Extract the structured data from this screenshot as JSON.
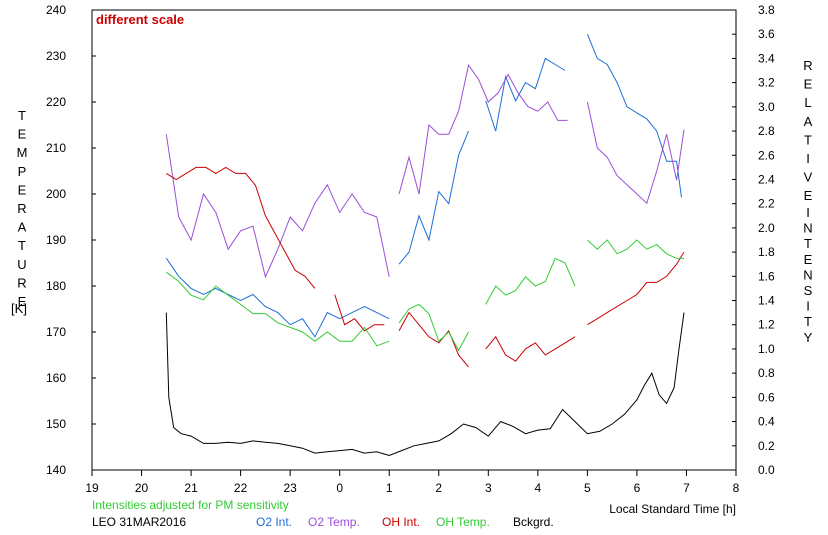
{
  "chart_data": {
    "type": "line",
    "annotation": "different scale",
    "left_axis": {
      "label_letters": [
        "T",
        "E",
        "M",
        "P",
        "E",
        "R",
        "A",
        "T",
        "U",
        "R",
        "E"
      ],
      "unit": "[K]",
      "range": [
        140,
        240
      ],
      "ticks": [
        140,
        150,
        160,
        170,
        180,
        190,
        200,
        210,
        220,
        230,
        240
      ]
    },
    "right_axis": {
      "label_word1": [
        "R",
        "E",
        "L",
        "A",
        "T",
        "I",
        "V",
        "E"
      ],
      "label_word2": [
        "I",
        "N",
        "T",
        "E",
        "N",
        "S",
        "I",
        "T",
        "Y"
      ],
      "range": [
        0,
        3.8
      ],
      "ticks": [
        "0.0",
        "0.2",
        "0.4",
        "0.6",
        "0.8",
        "1.0",
        "1.2",
        "1.4",
        "1.6",
        "1.8",
        "2.0",
        "2.2",
        "2.4",
        "2.6",
        "2.8",
        "3.0",
        "3.2",
        "3.4",
        "3.6",
        "3.8"
      ]
    },
    "x_axis": {
      "label": "Local Standard Time [h]",
      "ticks": [
        "19",
        "20",
        "21",
        "22",
        "23",
        "0",
        "1",
        "2",
        "3",
        "4",
        "5",
        "6",
        "7",
        "8"
      ]
    },
    "note": "Intensities adjusted for PM sensitivity",
    "station": "LEO 31MAR2016",
    "legend": [
      "O2 Int.",
      "O2 Temp.",
      "OH Int.",
      "OH Temp.",
      "Bckgrd."
    ],
    "series": [
      {
        "name": "O2 Int.",
        "axis": "right",
        "color": "#1e6fd6",
        "points": [
          [
            20.5,
            1.75
          ],
          [
            20.75,
            1.6
          ],
          [
            21.0,
            1.5
          ],
          [
            21.25,
            1.45
          ],
          [
            21.5,
            1.5
          ],
          [
            21.75,
            1.45
          ],
          [
            22.0,
            1.4
          ],
          [
            22.25,
            1.45
          ],
          [
            22.5,
            1.35
          ],
          [
            22.75,
            1.3
          ],
          [
            23.0,
            1.2
          ],
          [
            23.25,
            1.25
          ],
          [
            23.5,
            1.1
          ],
          [
            23.75,
            1.3
          ],
          [
            24.0,
            1.25
          ],
          [
            24.25,
            1.3
          ],
          [
            24.5,
            1.35
          ],
          [
            24.75,
            1.3
          ],
          [
            25.0,
            1.25
          ],
          null,
          [
            25.2,
            1.7
          ],
          [
            25.4,
            1.8
          ],
          [
            25.6,
            2.1
          ],
          [
            25.8,
            1.9
          ],
          [
            26.0,
            2.3
          ],
          [
            26.2,
            2.2
          ],
          [
            26.4,
            2.6
          ],
          [
            26.6,
            2.8
          ],
          null,
          [
            26.95,
            3.05
          ],
          [
            27.15,
            2.8
          ],
          [
            27.35,
            3.25
          ],
          [
            27.55,
            3.05
          ],
          [
            27.75,
            3.2
          ],
          [
            27.95,
            3.15
          ],
          [
            28.15,
            3.4
          ],
          [
            28.35,
            3.35
          ],
          [
            28.55,
            3.3
          ],
          null,
          [
            29.0,
            3.6
          ],
          [
            29.2,
            3.4
          ],
          [
            29.4,
            3.35
          ],
          [
            29.6,
            3.2
          ],
          [
            29.8,
            3.0
          ],
          [
            30.0,
            2.95
          ],
          [
            30.2,
            2.9
          ],
          [
            30.4,
            2.8
          ],
          [
            30.6,
            2.55
          ],
          [
            30.8,
            2.55
          ],
          [
            30.9,
            2.25
          ]
        ]
      },
      {
        "name": "O2 Temp.",
        "axis": "left",
        "color": "#9b4fd6",
        "points": [
          [
            20.5,
            213
          ],
          [
            20.75,
            195
          ],
          [
            21.0,
            190
          ],
          [
            21.25,
            200
          ],
          [
            21.5,
            196
          ],
          [
            21.75,
            188
          ],
          [
            22.0,
            192
          ],
          [
            22.25,
            193
          ],
          [
            22.5,
            182
          ],
          [
            22.75,
            188
          ],
          [
            23.0,
            195
          ],
          [
            23.25,
            192
          ],
          [
            23.5,
            198
          ],
          [
            23.75,
            202
          ],
          [
            24.0,
            196
          ],
          [
            24.25,
            200
          ],
          [
            24.5,
            196
          ],
          [
            24.75,
            195
          ],
          [
            25.0,
            182
          ],
          null,
          [
            25.2,
            200
          ],
          [
            25.4,
            208
          ],
          [
            25.6,
            200
          ],
          [
            25.8,
            215
          ],
          [
            26.0,
            213
          ],
          [
            26.2,
            213
          ],
          [
            26.4,
            218
          ],
          [
            26.6,
            228
          ],
          [
            26.8,
            225
          ],
          [
            27.0,
            220
          ],
          [
            27.2,
            222
          ],
          [
            27.4,
            226
          ],
          [
            27.6,
            222
          ],
          [
            27.8,
            219
          ],
          [
            28.0,
            218
          ],
          [
            28.2,
            220
          ],
          [
            28.4,
            216
          ],
          [
            28.6,
            216
          ],
          null,
          [
            29.0,
            220
          ],
          [
            29.2,
            210
          ],
          [
            29.4,
            208
          ],
          [
            29.6,
            204
          ],
          [
            29.8,
            202
          ],
          [
            30.0,
            200
          ],
          [
            30.2,
            198
          ],
          [
            30.4,
            205
          ],
          [
            30.6,
            213
          ],
          [
            30.8,
            203
          ],
          [
            30.95,
            214
          ]
        ]
      },
      {
        "name": "OH Int.",
        "axis": "right",
        "color": "#cc0000",
        "points": [
          [
            20.5,
            2.45
          ],
          [
            20.7,
            2.4
          ],
          [
            20.9,
            2.45
          ],
          [
            21.1,
            2.5
          ],
          [
            21.3,
            2.5
          ],
          [
            21.5,
            2.45
          ],
          [
            21.7,
            2.5
          ],
          [
            21.9,
            2.45
          ],
          [
            22.1,
            2.45
          ],
          [
            22.3,
            2.35
          ],
          [
            22.5,
            2.1
          ],
          [
            22.7,
            1.95
          ],
          [
            22.9,
            1.8
          ],
          [
            23.1,
            1.65
          ],
          [
            23.3,
            1.6
          ],
          [
            23.5,
            1.5
          ],
          null,
          [
            23.9,
            1.45
          ],
          [
            24.1,
            1.2
          ],
          [
            24.3,
            1.25
          ],
          [
            24.5,
            1.15
          ],
          [
            24.7,
            1.2
          ],
          [
            24.9,
            1.2
          ],
          null,
          [
            25.2,
            1.15
          ],
          [
            25.4,
            1.3
          ],
          [
            25.6,
            1.2
          ],
          [
            25.8,
            1.1
          ],
          [
            26.0,
            1.05
          ],
          [
            26.2,
            1.15
          ],
          [
            26.4,
            0.95
          ],
          [
            26.6,
            0.85
          ],
          null,
          [
            26.95,
            1.0
          ],
          [
            27.15,
            1.1
          ],
          [
            27.35,
            0.95
          ],
          [
            27.55,
            0.9
          ],
          [
            27.75,
            1.0
          ],
          [
            27.95,
            1.05
          ],
          [
            28.15,
            0.95
          ],
          [
            28.35,
            1.0
          ],
          [
            28.55,
            1.05
          ],
          [
            28.75,
            1.1
          ],
          null,
          [
            29.0,
            1.2
          ],
          [
            29.2,
            1.25
          ],
          [
            29.4,
            1.3
          ],
          [
            29.6,
            1.35
          ],
          [
            29.8,
            1.4
          ],
          [
            30.0,
            1.45
          ],
          [
            30.2,
            1.55
          ],
          [
            30.4,
            1.55
          ],
          [
            30.6,
            1.6
          ],
          [
            30.8,
            1.7
          ],
          [
            30.95,
            1.8
          ]
        ]
      },
      {
        "name": "OH Temp.",
        "axis": "left",
        "color": "#33cc33",
        "points": [
          [
            20.5,
            183
          ],
          [
            20.75,
            181
          ],
          [
            21.0,
            178
          ],
          [
            21.25,
            177
          ],
          [
            21.5,
            180
          ],
          [
            21.75,
            178
          ],
          [
            22.0,
            176
          ],
          [
            22.25,
            174
          ],
          [
            22.5,
            174
          ],
          [
            22.75,
            172
          ],
          [
            23.0,
            171
          ],
          [
            23.25,
            170
          ],
          [
            23.5,
            168
          ],
          [
            23.75,
            170
          ],
          [
            24.0,
            168
          ],
          [
            24.25,
            168
          ],
          [
            24.5,
            171
          ],
          [
            24.75,
            167
          ],
          [
            25.0,
            168
          ],
          null,
          [
            25.2,
            172
          ],
          [
            25.4,
            175
          ],
          [
            25.6,
            176
          ],
          [
            25.8,
            174
          ],
          [
            26.0,
            168
          ],
          [
            26.2,
            170
          ],
          [
            26.4,
            166
          ],
          [
            26.6,
            170
          ],
          null,
          [
            26.95,
            176
          ],
          [
            27.15,
            180
          ],
          [
            27.35,
            178
          ],
          [
            27.55,
            179
          ],
          [
            27.75,
            182
          ],
          [
            27.95,
            180
          ],
          [
            28.15,
            181
          ],
          [
            28.35,
            186
          ],
          [
            28.55,
            185
          ],
          [
            28.75,
            180
          ],
          null,
          [
            29.0,
            190
          ],
          [
            29.2,
            188
          ],
          [
            29.4,
            190
          ],
          [
            29.6,
            187
          ],
          [
            29.8,
            188
          ],
          [
            30.0,
            190
          ],
          [
            30.2,
            188
          ],
          [
            30.4,
            189
          ],
          [
            30.6,
            187
          ],
          [
            30.8,
            186
          ],
          [
            30.95,
            186
          ]
        ]
      },
      {
        "name": "Bckgrd.",
        "axis": "right",
        "color": "#000000",
        "points": [
          [
            20.5,
            1.3
          ],
          [
            20.55,
            0.6
          ],
          [
            20.65,
            0.35
          ],
          [
            20.8,
            0.3
          ],
          [
            21.0,
            0.28
          ],
          [
            21.25,
            0.22
          ],
          [
            21.5,
            0.22
          ],
          [
            21.75,
            0.23
          ],
          [
            22.0,
            0.22
          ],
          [
            22.25,
            0.24
          ],
          [
            22.5,
            0.23
          ],
          [
            22.75,
            0.22
          ],
          [
            23.0,
            0.2
          ],
          [
            23.25,
            0.18
          ],
          [
            23.5,
            0.14
          ],
          [
            23.75,
            0.15
          ],
          [
            24.0,
            0.16
          ],
          [
            24.25,
            0.17
          ],
          [
            24.5,
            0.14
          ],
          [
            24.75,
            0.15
          ],
          [
            25.0,
            0.12
          ],
          [
            25.25,
            0.16
          ],
          [
            25.5,
            0.2
          ],
          [
            25.75,
            0.22
          ],
          [
            26.0,
            0.24
          ],
          [
            26.25,
            0.3
          ],
          [
            26.5,
            0.38
          ],
          [
            26.75,
            0.35
          ],
          [
            27.0,
            0.28
          ],
          [
            27.25,
            0.4
          ],
          [
            27.5,
            0.36
          ],
          [
            27.75,
            0.3
          ],
          [
            28.0,
            0.33
          ],
          [
            28.25,
            0.34
          ],
          [
            28.5,
            0.5
          ],
          [
            28.75,
            0.4
          ],
          [
            29.0,
            0.3
          ],
          [
            29.25,
            0.32
          ],
          [
            29.5,
            0.38
          ],
          [
            29.75,
            0.46
          ],
          [
            30.0,
            0.58
          ],
          [
            30.15,
            0.7
          ],
          [
            30.3,
            0.8
          ],
          [
            30.45,
            0.62
          ],
          [
            30.6,
            0.55
          ],
          [
            30.75,
            0.68
          ],
          [
            30.85,
            1.0
          ],
          [
            30.95,
            1.3
          ]
        ]
      }
    ]
  }
}
